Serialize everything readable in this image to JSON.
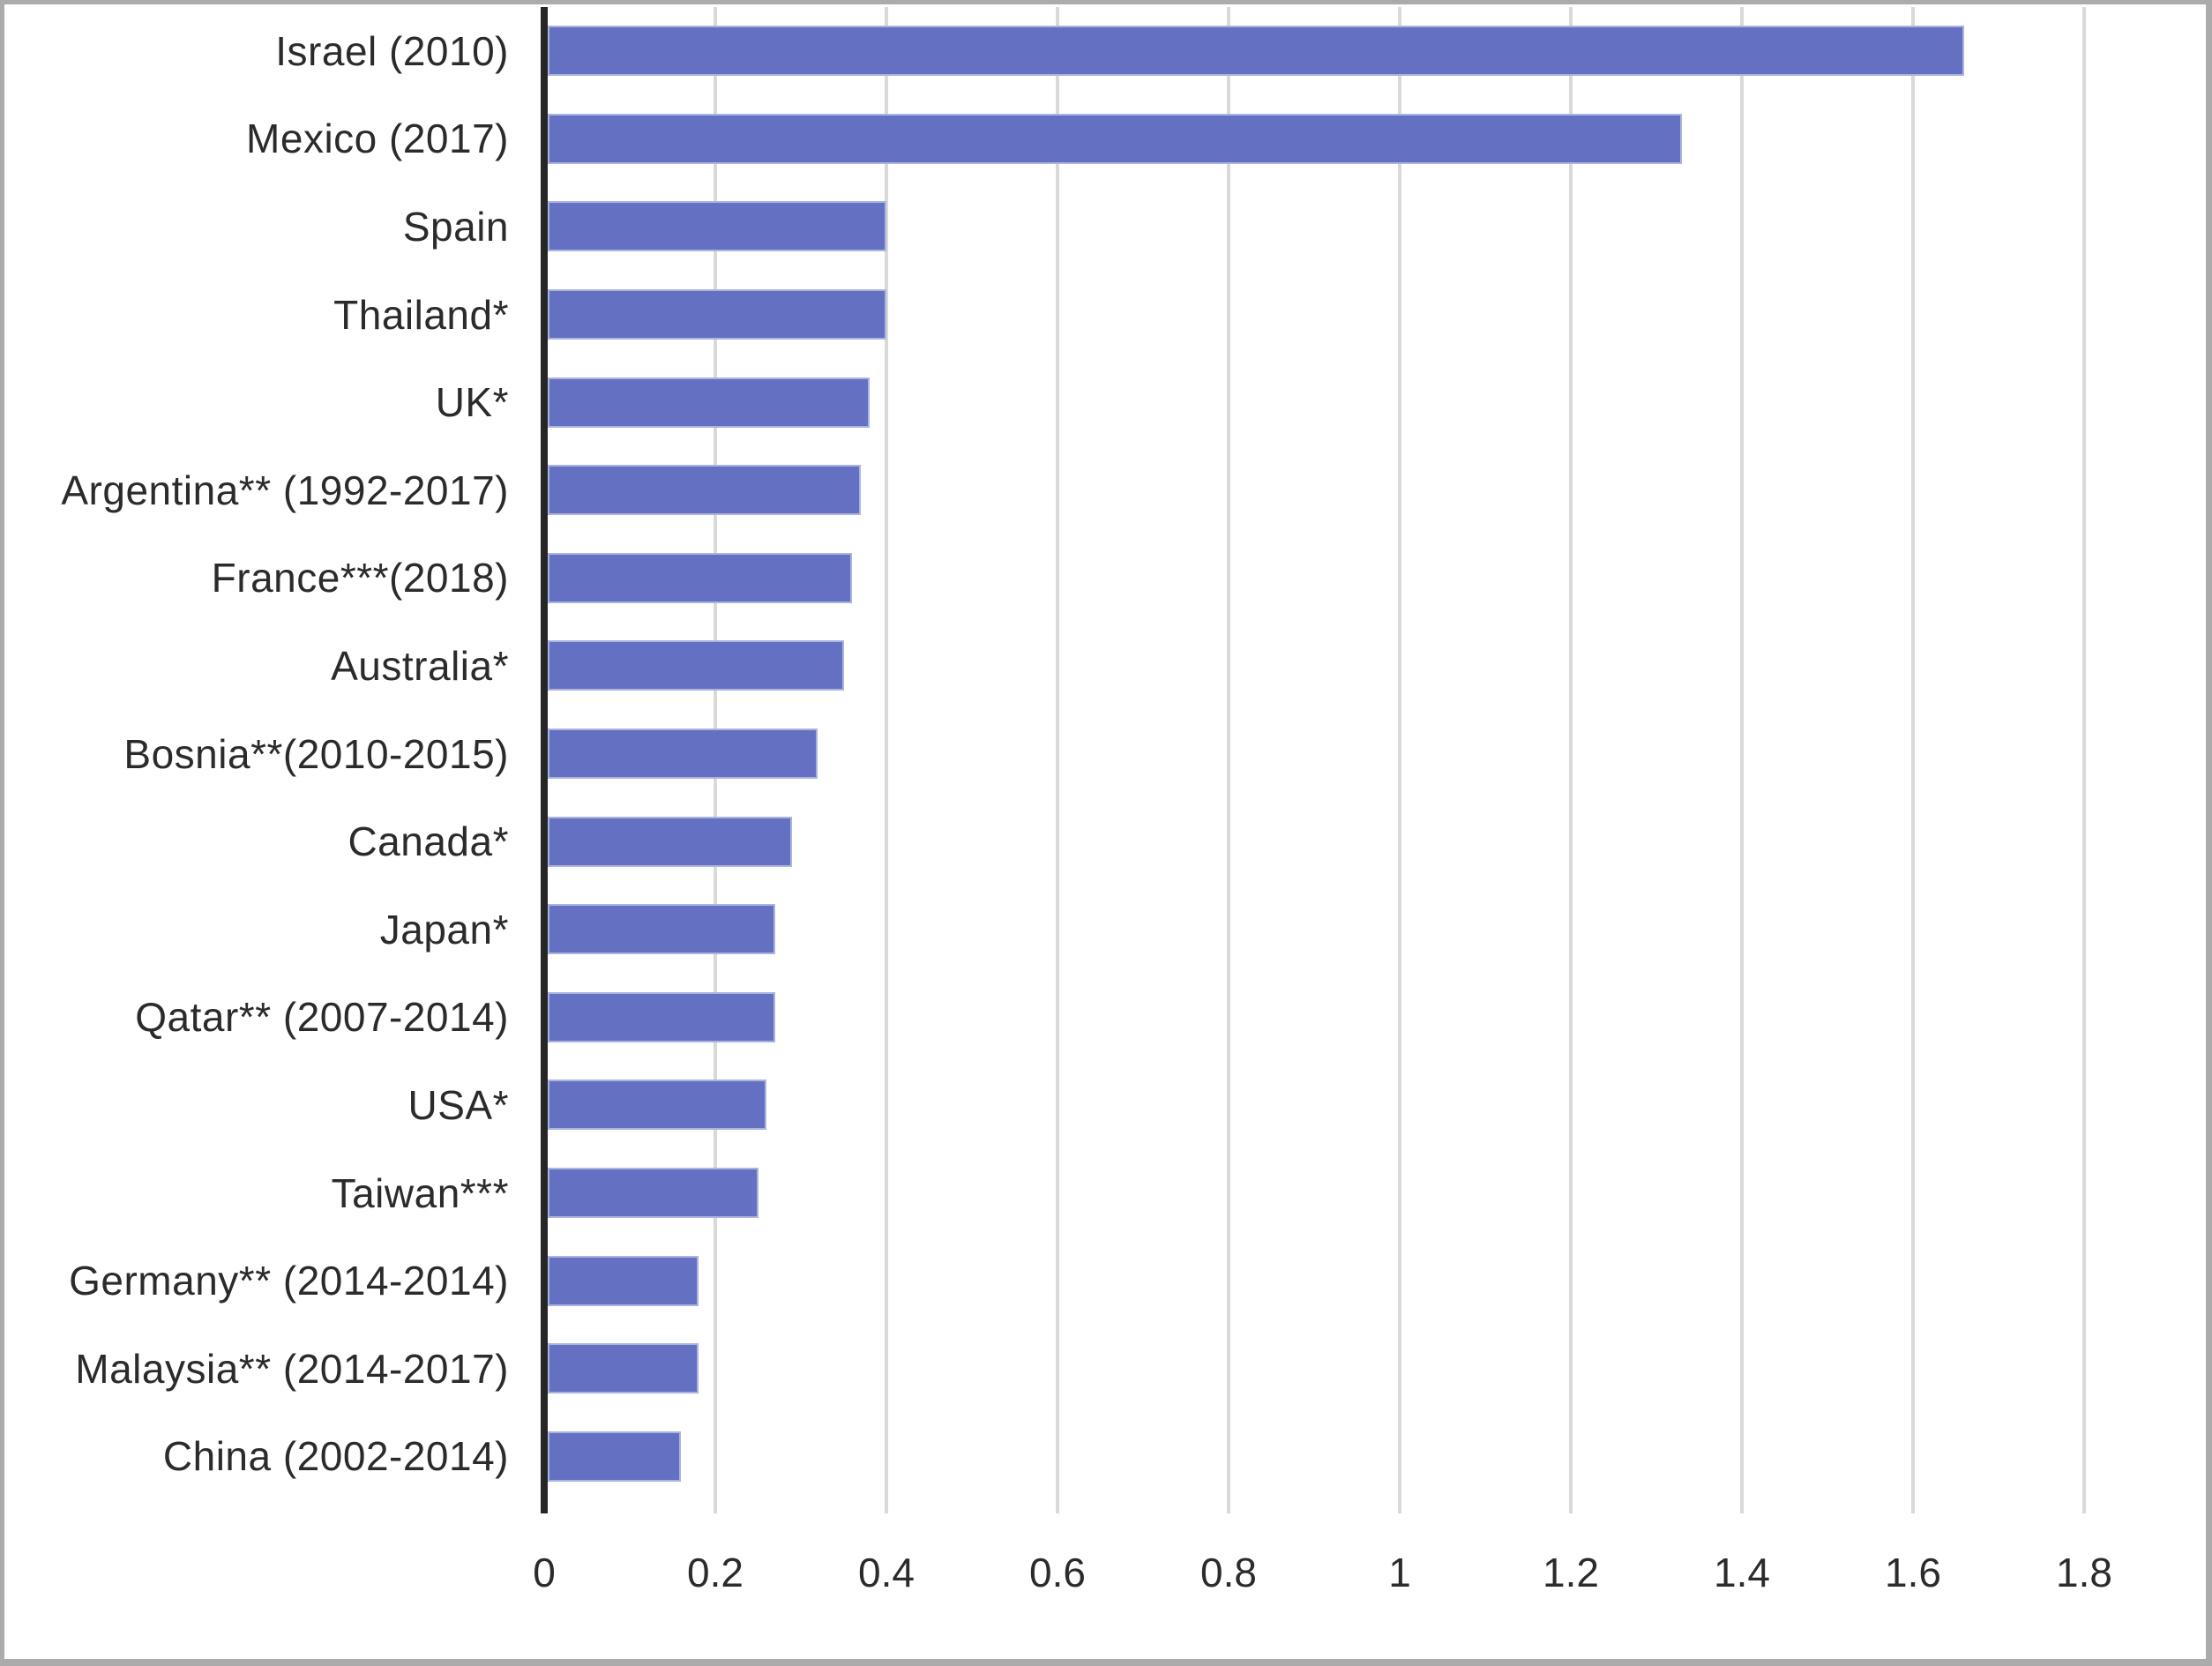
{
  "chart_data": {
    "type": "bar",
    "orientation": "horizontal",
    "title": "",
    "xlabel": "",
    "ylabel": "",
    "categories": [
      "Israel (2010)",
      "Mexico (2017)",
      "Spain",
      "Thailand*",
      "UK*",
      "Argentina** (1992-2017)",
      "France***(2018)",
      "Australia*",
      "Bosnia**(2010-2015)",
      "Canada*",
      "Japan*",
      "Qatar** (2007-2014)",
      "USA*",
      "Taiwan***",
      "Germany** (2014-2014)",
      "Malaysia** (2014-2017)",
      "China (2002-2014)"
    ],
    "values": [
      1.66,
      1.33,
      0.4,
      0.4,
      0.38,
      0.37,
      0.36,
      0.35,
      0.32,
      0.29,
      0.27,
      0.27,
      0.26,
      0.25,
      0.18,
      0.18,
      0.16
    ],
    "x_ticks": [
      {
        "label": "0",
        "value": 0
      },
      {
        "label": "0.2",
        "value": 0.2
      },
      {
        "label": "0.4",
        "value": 0.4
      },
      {
        "label": "0.6",
        "value": 0.6
      },
      {
        "label": "0.8",
        "value": 0.8
      },
      {
        "label": "1",
        "value": 1
      },
      {
        "label": "1.2",
        "value": 1.2
      },
      {
        "label": "1.4",
        "value": 1.4
      },
      {
        "label": "1.6",
        "value": 1.6
      },
      {
        "label": "1.8",
        "value": 1.8
      }
    ],
    "xlim": [
      0,
      1.92
    ],
    "grid": "vertical-only",
    "legend": "none",
    "colors": {
      "bar_fill": "#6471c3",
      "bar_border": "#aab4de",
      "gridline": "#d9d9d9",
      "axis_line": "#262626",
      "text": "#2b2b2b",
      "figure_border": "#ababab",
      "background": "#ffffff"
    }
  }
}
